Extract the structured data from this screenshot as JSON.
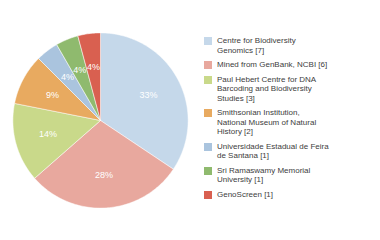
{
  "chart_data": {
    "type": "pie",
    "categories": [
      "Centre for Biodiversity\nGenomics [7]",
      "Mined from GenBank, NCBI [6]",
      "Paul Hebert Centre for DNA\nBarcoding and Biodiversity\nStudies [3]",
      "Smithsonian Institution,\nNational Museum of Natural\nHistory [2]",
      "Universidade Estadual de Feira\nde Santana [1]",
      "Sri Ramaswamy Memorial\nUniversity [1]",
      "GenoScreen [1]"
    ],
    "values": [
      33,
      28,
      14,
      9,
      4,
      4,
      4
    ],
    "value_labels": [
      "33%",
      "28%",
      "14%",
      "9%",
      "4%",
      "4%",
      "4%"
    ],
    "colors": [
      "#c5d8ea",
      "#e8a89e",
      "#c9d98a",
      "#e8aa60",
      "#aac4de",
      "#8fba6e",
      "#d96050"
    ],
    "data_labels": true,
    "legend": "right"
  }
}
